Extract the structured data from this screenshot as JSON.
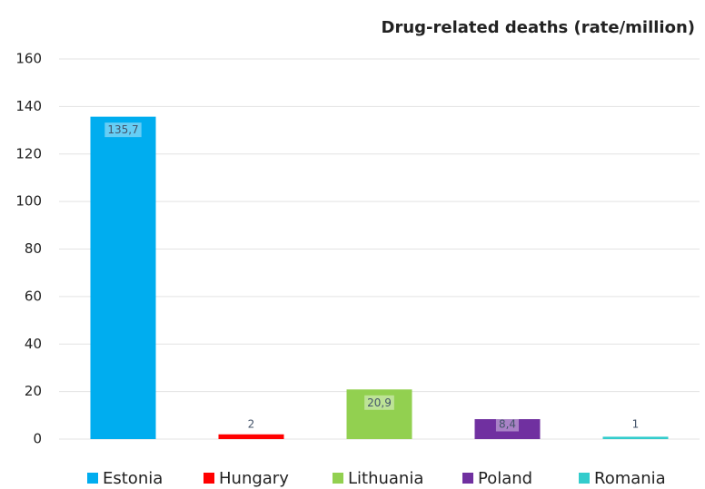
{
  "chart_data": {
    "type": "bar",
    "title": "Drug-related deaths (rate/million)",
    "series": [
      {
        "name": "Estonia",
        "color": "#00adef",
        "values": [
          135.7
        ],
        "value_labels": [
          "135,7"
        ]
      },
      {
        "name": "Hungary",
        "color": "#ff0000",
        "values": [
          2
        ],
        "value_labels": [
          "2"
        ]
      },
      {
        "name": "Lithuania",
        "color": "#92d050",
        "values": [
          20.9
        ],
        "value_labels": [
          "20,9"
        ]
      },
      {
        "name": "Poland",
        "color": "#7030a0",
        "values": [
          8.4
        ],
        "value_labels": [
          "8,4"
        ]
      },
      {
        "name": "Romania",
        "color": "#33cccc",
        "values": [
          1
        ],
        "value_labels": [
          "1"
        ]
      }
    ],
    "ylim": [
      0,
      160
    ],
    "yticks": [
      0,
      20,
      40,
      60,
      80,
      100,
      120,
      140,
      160
    ],
    "grid": true,
    "legend": "bottom"
  }
}
